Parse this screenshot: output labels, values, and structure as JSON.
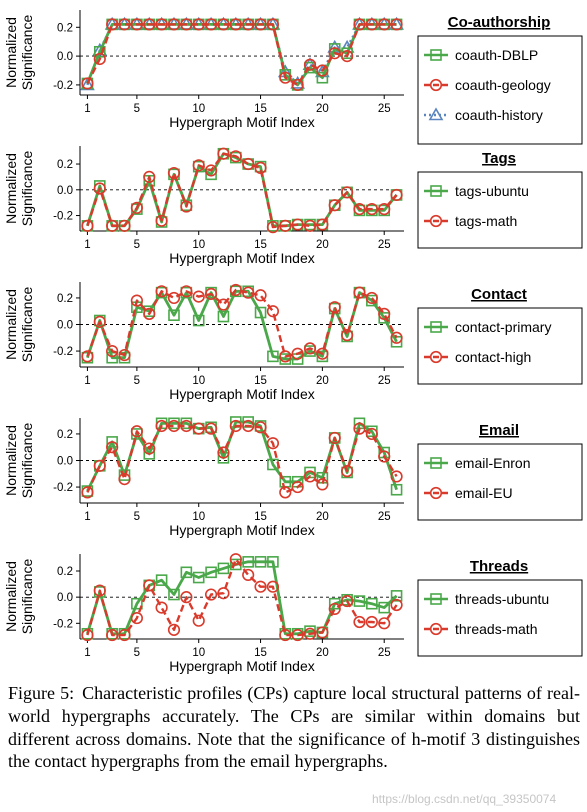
{
  "figure": {
    "caption_label": "Figure 5:",
    "caption_text": "Characteristic profiles (CPs) capture local structural patterns of real-world hypergraphs accurately. The CPs are similar within domains but different across domains. Note that the significance of h-motif 3 distinguishes the contact hypergraphs from the email hypergraphs.",
    "watermark": "https://blog.csdn.net/qq_39350074"
  },
  "colors": {
    "green": "#4aa84a",
    "red": "#d93a2b",
    "blue": "#5a85c0"
  },
  "chart_data": [
    {
      "type": "line",
      "title": "Co-authorship",
      "xlabel": "Hypergraph Motif Index",
      "ylabel": "Normalized Significance",
      "xticks": [
        1,
        5,
        10,
        15,
        20,
        25
      ],
      "yticks": [
        -0.2,
        0.0,
        0.2
      ],
      "yticklabels": [
        "-0.2",
        "0.0",
        "0.2"
      ],
      "xlim": [
        0.4,
        26.6
      ],
      "ylim": [
        -0.27,
        0.32
      ],
      "legend_position": "right",
      "series": [
        {
          "name": "coauth-DBLP",
          "color": "green",
          "marker": "square",
          "values": [
            -0.19,
            0.03,
            0.22,
            0.22,
            0.22,
            0.22,
            0.22,
            0.22,
            0.22,
            0.22,
            0.22,
            0.22,
            0.22,
            0.22,
            0.22,
            0.22,
            -0.13,
            -0.2,
            -0.08,
            -0.15,
            0.05,
            0.02,
            0.22,
            0.22,
            0.22,
            0.22
          ]
        },
        {
          "name": "coauth-geology",
          "color": "red",
          "marker": "circle",
          "values": [
            -0.19,
            -0.02,
            0.22,
            0.22,
            0.22,
            0.22,
            0.22,
            0.22,
            0.22,
            0.22,
            0.22,
            0.22,
            0.22,
            0.22,
            0.22,
            0.22,
            -0.15,
            -0.2,
            -0.06,
            -0.1,
            0.02,
            0.0,
            0.22,
            0.22,
            0.22,
            0.22
          ]
        },
        {
          "name": "coauth-history",
          "color": "blue",
          "marker": "triangle",
          "values": [
            -0.2,
            0.04,
            0.22,
            0.22,
            0.22,
            0.22,
            0.22,
            0.22,
            0.22,
            0.22,
            0.22,
            0.22,
            0.22,
            0.22,
            0.22,
            0.22,
            -0.11,
            -0.19,
            -0.06,
            -0.11,
            0.06,
            0.06,
            0.22,
            0.22,
            0.22,
            0.22
          ]
        }
      ]
    },
    {
      "type": "line",
      "title": "Tags",
      "xlabel": "Hypergraph Motif Index",
      "ylabel": "Normalized Significance",
      "xticks": [
        1,
        5,
        10,
        15,
        20,
        25
      ],
      "yticks": [
        -0.2,
        0.0,
        0.2
      ],
      "yticklabels": [
        "-0.2",
        "0.0",
        "0.2"
      ],
      "xlim": [
        0.4,
        26.6
      ],
      "ylim": [
        -0.32,
        0.34
      ],
      "legend_position": "right",
      "series": [
        {
          "name": "tags-ubuntu",
          "color": "green",
          "marker": "square",
          "values": [
            -0.28,
            0.03,
            -0.28,
            -0.28,
            -0.15,
            0.07,
            -0.25,
            0.12,
            -0.12,
            0.18,
            0.12,
            0.28,
            0.25,
            0.2,
            0.18,
            -0.28,
            -0.28,
            -0.27,
            -0.27,
            -0.27,
            -0.12,
            -0.02,
            -0.16,
            -0.16,
            -0.16,
            -0.04
          ]
        },
        {
          "name": "tags-math",
          "color": "red",
          "marker": "circle",
          "values": [
            -0.28,
            0.01,
            -0.28,
            -0.28,
            -0.14,
            0.1,
            -0.24,
            0.13,
            -0.13,
            0.19,
            0.15,
            0.28,
            0.26,
            0.2,
            0.17,
            -0.29,
            -0.28,
            -0.27,
            -0.28,
            -0.27,
            -0.12,
            -0.02,
            -0.15,
            -0.15,
            -0.15,
            -0.04
          ]
        }
      ]
    },
    {
      "type": "line",
      "title": "Contact",
      "xlabel": "Hypergraph Motif Index",
      "ylabel": "Normalized Significance",
      "xticks": [
        1,
        5,
        10,
        15,
        20,
        25
      ],
      "yticks": [
        -0.2,
        0.0,
        0.2
      ],
      "yticklabels": [
        "-0.2",
        "0.0",
        "0.2"
      ],
      "xlim": [
        0.4,
        26.6
      ],
      "ylim": [
        -0.32,
        0.32
      ],
      "legend_position": "right",
      "series": [
        {
          "name": "contact-primary",
          "color": "green",
          "marker": "square",
          "values": [
            -0.25,
            0.03,
            -0.25,
            -0.25,
            0.13,
            0.1,
            0.24,
            0.07,
            0.24,
            0.03,
            0.24,
            0.06,
            0.25,
            0.25,
            0.09,
            -0.24,
            -0.26,
            -0.26,
            -0.2,
            -0.24,
            0.12,
            -0.09,
            0.24,
            0.18,
            0.05,
            -0.13
          ]
        },
        {
          "name": "contact-high",
          "color": "red",
          "marker": "circle",
          "values": [
            -0.24,
            0.02,
            -0.2,
            -0.23,
            0.18,
            0.08,
            0.25,
            0.2,
            0.25,
            0.21,
            0.23,
            0.15,
            0.26,
            0.24,
            0.22,
            0.1,
            -0.24,
            -0.22,
            -0.18,
            -0.22,
            0.13,
            -0.08,
            0.24,
            0.2,
            0.08,
            -0.1
          ]
        }
      ]
    },
    {
      "type": "line",
      "title": "Email",
      "xlabel": "Hypergraph Motif Index",
      "ylabel": "Normalized Significance",
      "xticks": [
        1,
        5,
        10,
        15,
        20,
        25
      ],
      "yticks": [
        -0.2,
        0.0,
        0.2
      ],
      "yticklabels": [
        "-0.2",
        "0.0",
        "0.2"
      ],
      "xlim": [
        0.4,
        26.6
      ],
      "ylim": [
        -0.32,
        0.32
      ],
      "legend_position": "right",
      "series": [
        {
          "name": "email-Enron",
          "color": "green",
          "marker": "square",
          "values": [
            -0.23,
            -0.04,
            0.14,
            -0.11,
            0.2,
            0.05,
            0.28,
            0.28,
            0.28,
            0.24,
            0.25,
            0.02,
            0.29,
            0.29,
            0.26,
            -0.03,
            -0.16,
            -0.16,
            -0.09,
            -0.13,
            0.17,
            -0.09,
            0.28,
            0.22,
            0.06,
            -0.22
          ]
        },
        {
          "name": "email-EU",
          "color": "red",
          "marker": "circle",
          "values": [
            -0.24,
            -0.04,
            0.1,
            -0.14,
            0.22,
            0.09,
            0.26,
            0.26,
            0.26,
            0.24,
            0.24,
            0.06,
            0.26,
            0.26,
            0.25,
            0.13,
            -0.24,
            -0.2,
            -0.12,
            -0.18,
            0.17,
            -0.08,
            0.24,
            0.2,
            0.03,
            -0.12
          ]
        }
      ]
    },
    {
      "type": "line",
      "title": "Threads",
      "xlabel": "Hypergraph Motif Index",
      "ylabel": "Normalized Significance",
      "xticks": [
        1,
        5,
        10,
        15,
        20,
        25
      ],
      "yticks": [
        -0.2,
        0.0,
        0.2
      ],
      "yticklabels": [
        "-0.2",
        "0.0",
        "0.2"
      ],
      "xlim": [
        0.4,
        26.6
      ],
      "ylim": [
        -0.32,
        0.33
      ],
      "legend_position": "right",
      "series": [
        {
          "name": "threads-ubuntu",
          "color": "green",
          "marker": "square",
          "values": [
            -0.28,
            0.04,
            -0.28,
            -0.28,
            -0.05,
            0.09,
            0.13,
            0.02,
            0.19,
            0.15,
            0.19,
            0.22,
            0.25,
            0.27,
            0.27,
            0.27,
            -0.28,
            -0.28,
            -0.26,
            -0.27,
            -0.05,
            -0.02,
            -0.03,
            -0.05,
            -0.08,
            0.01
          ]
        },
        {
          "name": "threads-math",
          "color": "red",
          "marker": "circle",
          "values": [
            -0.29,
            0.05,
            -0.29,
            -0.29,
            -0.16,
            0.09,
            -0.08,
            -0.25,
            0.0,
            -0.18,
            0.02,
            0.03,
            0.29,
            0.17,
            0.08,
            0.08,
            -0.29,
            -0.29,
            -0.28,
            -0.27,
            -0.09,
            -0.03,
            -0.19,
            -0.19,
            -0.2,
            -0.06
          ]
        }
      ]
    }
  ]
}
